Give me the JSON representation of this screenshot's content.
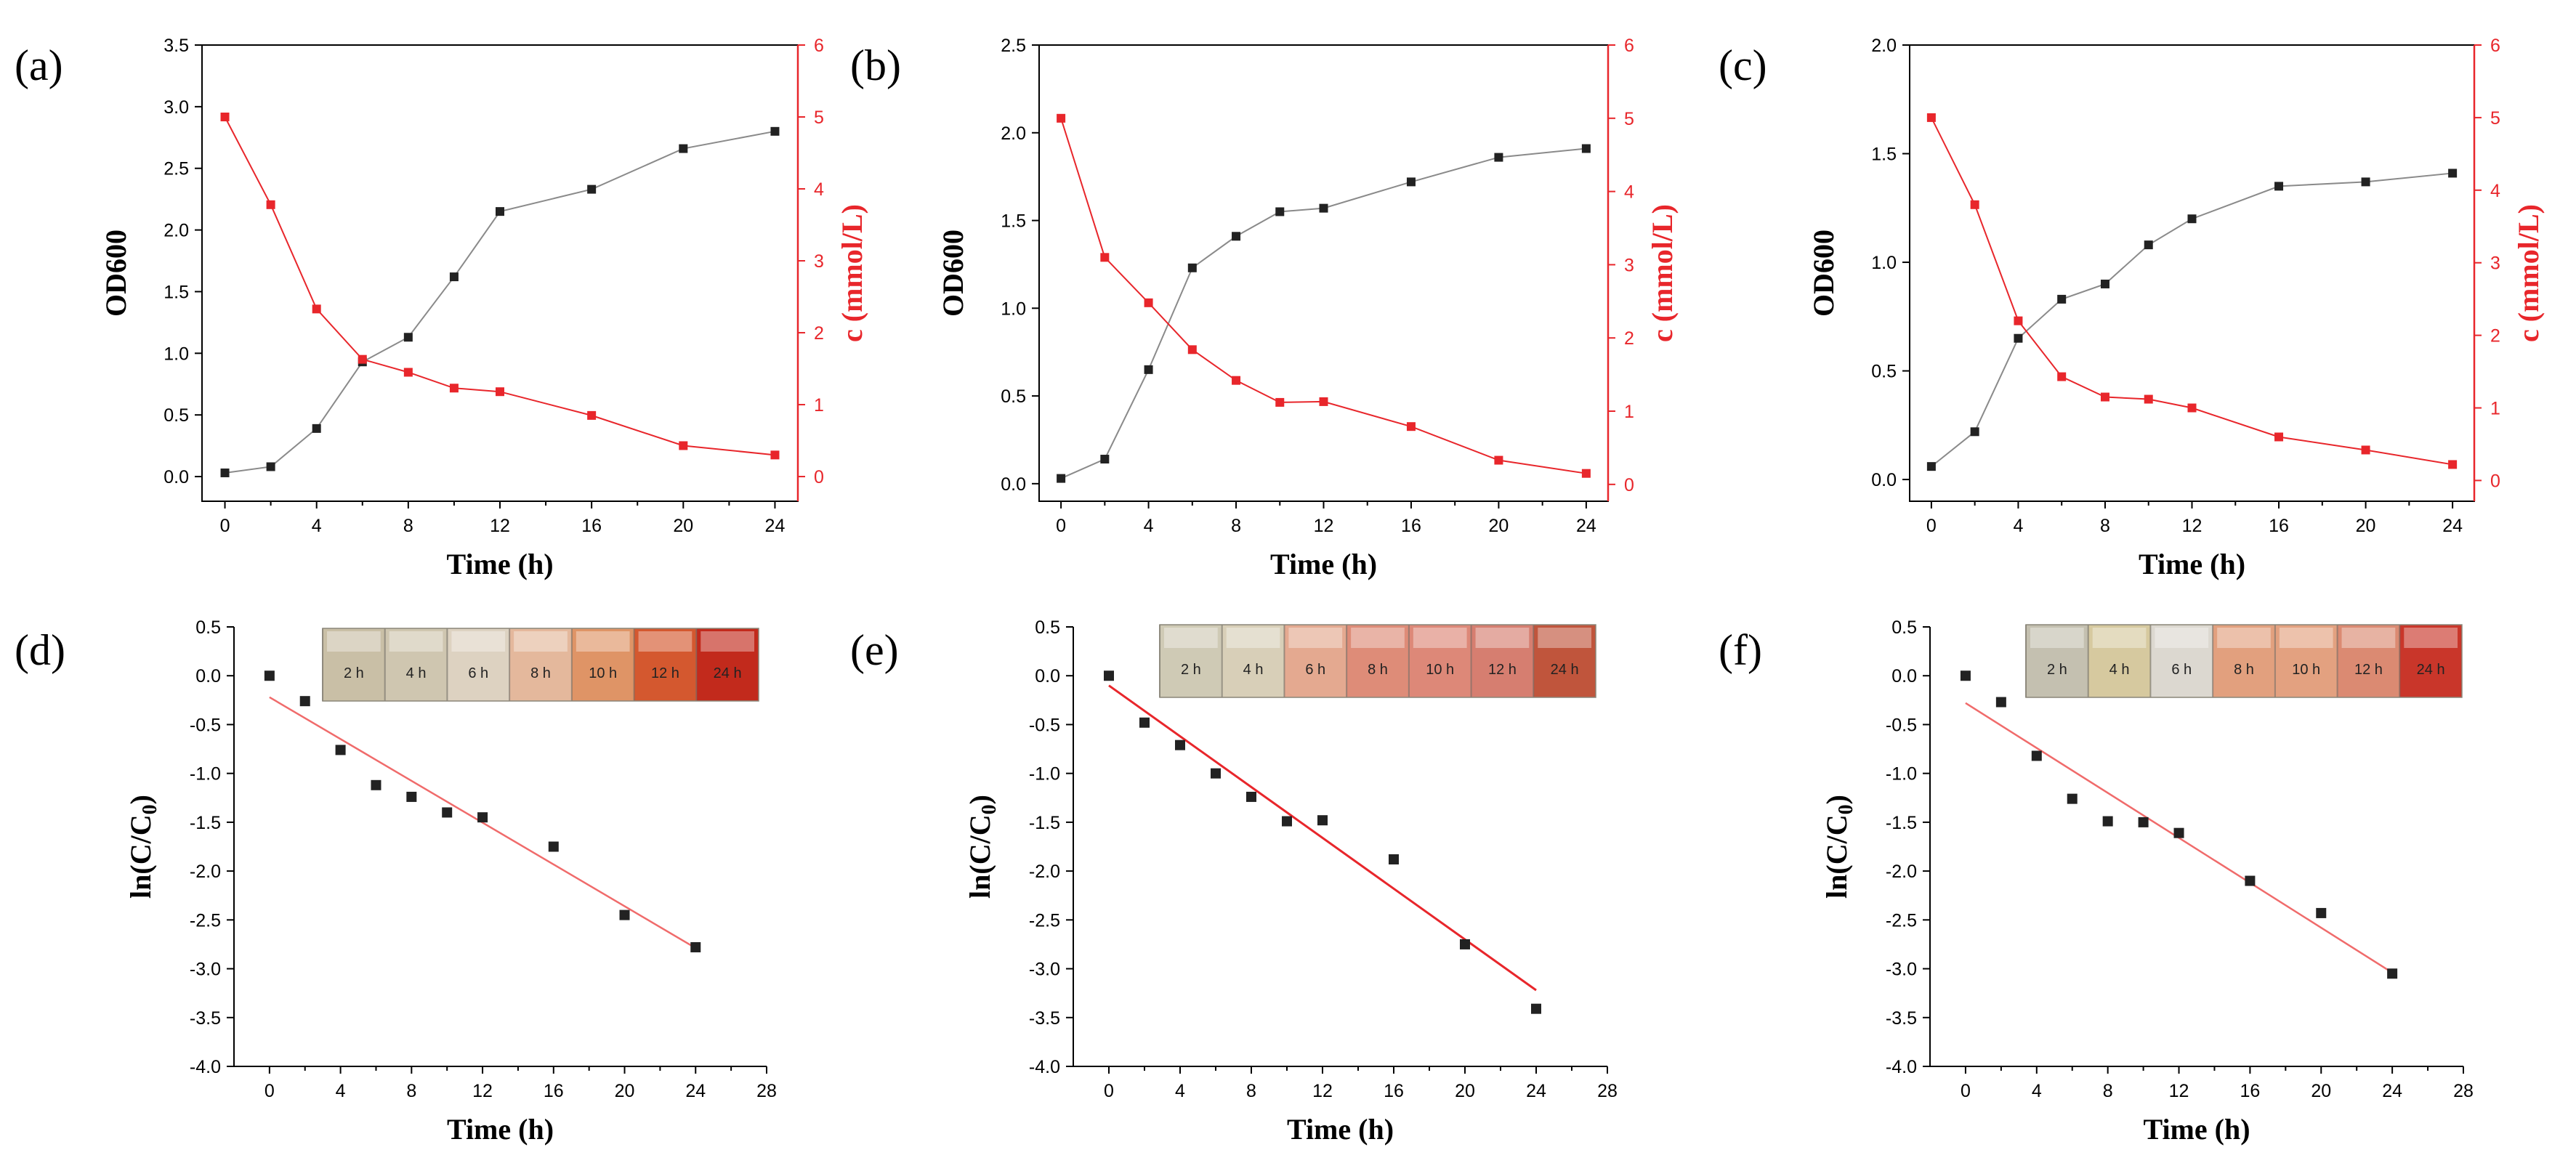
{
  "colors": {
    "od_series": "#222222",
    "od_line": "#8a8a8a",
    "conc_series": "#e8262b",
    "fit_line": "#f06b6b",
    "fit_line_e": "#e8262b",
    "axis": "#000000",
    "right_axis": "#e8262b"
  },
  "chart_data": [
    {
      "panel_label": "(a)",
      "type": "line",
      "xlabel": "Time (h)",
      "ylabel": "OD600",
      "y2label": "c (mmol/L)",
      "xlim": [
        -1,
        25
      ],
      "xticks": [
        "0",
        "4",
        "8",
        "12",
        "16",
        "20",
        "24"
      ],
      "ylim": [
        -0.2,
        3.5
      ],
      "yticks": [
        "0.0",
        "0.5",
        "1.0",
        "1.5",
        "2.0",
        "2.5",
        "3.0",
        "3.5"
      ],
      "y2lim": [
        -0.343,
        6
      ],
      "y2ticks": [
        "0",
        "1",
        "2",
        "3",
        "4",
        "5",
        "6"
      ],
      "x": [
        0,
        2,
        4,
        6,
        8,
        10,
        12,
        16,
        20,
        24
      ],
      "series": [
        {
          "name": "OD600",
          "axis": "left",
          "values": [
            0.03,
            0.08,
            0.39,
            0.93,
            1.13,
            1.62,
            2.15,
            2.33,
            2.66,
            2.8
          ]
        },
        {
          "name": "c (mmol/L)",
          "axis": "right",
          "values": [
            5.0,
            3.78,
            2.33,
            1.63,
            1.45,
            1.23,
            1.18,
            0.85,
            0.43,
            0.3
          ]
        }
      ]
    },
    {
      "panel_label": "(b)",
      "type": "line",
      "xlabel": "Time (h)",
      "ylabel": "OD600",
      "y2label": "c (mmol/L)",
      "xlim": [
        -1,
        25
      ],
      "xticks": [
        "0",
        "4",
        "8",
        "12",
        "16",
        "20",
        "24"
      ],
      "ylim": [
        -0.1,
        2.5
      ],
      "yticks": [
        "0.0",
        "0.5",
        "1.0",
        "1.5",
        "2.0",
        "2.5"
      ],
      "y2lim": [
        -0.23,
        6
      ],
      "y2ticks": [
        "0",
        "1",
        "2",
        "3",
        "4",
        "5",
        "6"
      ],
      "x": [
        0,
        2,
        4,
        6,
        8,
        10,
        12,
        16,
        20,
        24
      ],
      "series": [
        {
          "name": "OD600",
          "axis": "left",
          "values": [
            0.03,
            0.14,
            0.65,
            1.23,
            1.41,
            1.55,
            1.57,
            1.72,
            1.86,
            1.91
          ]
        },
        {
          "name": "c (mmol/L)",
          "axis": "right",
          "values": [
            5.0,
            3.1,
            2.48,
            1.84,
            1.42,
            1.12,
            1.13,
            0.79,
            0.33,
            0.15
          ]
        }
      ]
    },
    {
      "panel_label": "(c)",
      "type": "line",
      "xlabel": "Time (h)",
      "ylabel": "OD600",
      "y2label": "c (mmol/L)",
      "xlim": [
        -1,
        25
      ],
      "xticks": [
        "0",
        "4",
        "8",
        "12",
        "16",
        "20",
        "24"
      ],
      "ylim": [
        -0.1,
        2.0
      ],
      "yticks": [
        "0.0",
        "0.5",
        "1.0",
        "1.5",
        "2.0"
      ],
      "y2lim": [
        -0.286,
        6
      ],
      "y2ticks": [
        "0",
        "1",
        "2",
        "3",
        "4",
        "5",
        "6"
      ],
      "x": [
        0,
        2,
        4,
        6,
        8,
        10,
        12,
        16,
        20,
        24
      ],
      "series": [
        {
          "name": "OD600",
          "axis": "left",
          "values": [
            0.06,
            0.22,
            0.65,
            0.83,
            0.9,
            1.08,
            1.2,
            1.35,
            1.37,
            1.41
          ]
        },
        {
          "name": "c (mmol/L)",
          "axis": "right",
          "values": [
            5.0,
            3.8,
            2.2,
            1.43,
            1.15,
            1.12,
            1.0,
            0.6,
            0.42,
            0.22
          ]
        }
      ]
    },
    {
      "panel_label": "(d)",
      "type": "scatter",
      "xlabel": "Time (h)",
      "ylabel": "ln(C/C0)",
      "xlim": [
        -2,
        28
      ],
      "xticks": [
        "0",
        "4",
        "8",
        "12",
        "16",
        "20",
        "24",
        "28"
      ],
      "ylim": [
        -4.0,
        0.5
      ],
      "yticks": [
        "0.5",
        "0.0",
        "-0.5",
        "-1.0",
        "-1.5",
        "-2.0",
        "-2.5",
        "-3.0",
        "-3.5",
        "-4.0"
      ],
      "x": [
        0,
        2,
        4,
        6,
        8,
        10,
        12,
        16,
        20,
        24
      ],
      "values": [
        0.0,
        -0.26,
        -0.76,
        -1.12,
        -1.24,
        -1.4,
        -1.45,
        -1.75,
        -2.45,
        -2.78
      ],
      "fit": {
        "slope": -0.107,
        "intercept": -0.22,
        "x_range": [
          0,
          24
        ]
      },
      "strip_labels": [
        "2 h",
        "4 h",
        "6 h",
        "8 h",
        "10 h",
        "12 h",
        "24 h"
      ],
      "strip_colors": [
        "#c9bfa6",
        "#cfc6b0",
        "#ddd2c1",
        "#e4b89c",
        "#df9466",
        "#d4582f",
        "#c22a1c"
      ]
    },
    {
      "panel_label": "(e)",
      "type": "scatter",
      "xlabel": "Time (h)",
      "ylabel": "ln(C/C0)",
      "xlim": [
        -2,
        28
      ],
      "xticks": [
        "0",
        "4",
        "8",
        "12",
        "16",
        "20",
        "24",
        "28"
      ],
      "ylim": [
        -4.0,
        0.5
      ],
      "yticks": [
        "0.5",
        "0.0",
        "-0.5",
        "-1.0",
        "-1.5",
        "-2.0",
        "-2.5",
        "-3.0",
        "-3.5",
        "-4.0"
      ],
      "x": [
        0,
        2,
        4,
        6,
        8,
        10,
        12,
        16,
        20,
        24
      ],
      "values": [
        0.0,
        -0.48,
        -0.71,
        -1.0,
        -1.24,
        -1.49,
        -1.48,
        -1.88,
        -2.75,
        -3.41
      ],
      "fit": {
        "slope": -0.13,
        "intercept": -0.1,
        "x_range": [
          0,
          24
        ]
      },
      "strip_labels": [
        "2 h",
        "4 h",
        "6 h",
        "8 h",
        "10 h",
        "12 h",
        "24 h"
      ],
      "strip_colors": [
        "#cfcab5",
        "#d8cfb8",
        "#e4a990",
        "#de8c78",
        "#dd8878",
        "#d67e70",
        "#c0553c"
      ]
    },
    {
      "panel_label": "(f)",
      "type": "scatter",
      "xlabel": "Time (h)",
      "ylabel": "ln(C/C0)",
      "xlim": [
        -2,
        28
      ],
      "xticks": [
        "0",
        "4",
        "8",
        "12",
        "16",
        "20",
        "24",
        "28"
      ],
      "ylim": [
        -4.0,
        0.5
      ],
      "yticks": [
        "0.5",
        "0.0",
        "-0.5",
        "-1.0",
        "-1.5",
        "-2.0",
        "-2.5",
        "-3.0",
        "-3.5",
        "-4.0"
      ],
      "x": [
        0,
        2,
        4,
        6,
        8,
        10,
        12,
        16,
        20,
        24
      ],
      "values": [
        0.0,
        -0.27,
        -0.82,
        -1.26,
        -1.49,
        -1.5,
        -1.61,
        -2.1,
        -2.43,
        -3.05
      ],
      "fit": {
        "slope": -0.115,
        "intercept": -0.28,
        "x_range": [
          0,
          24
        ]
      },
      "strip_labels": [
        "2 h",
        "4 h",
        "6 h",
        "8 h",
        "10 h",
        "12 h",
        "24 h"
      ],
      "strip_colors": [
        "#c4c0b0",
        "#d6c99f",
        "#dcd8d0",
        "#e2a07e",
        "#e3a180",
        "#db8a72",
        "#c9362a"
      ]
    }
  ]
}
